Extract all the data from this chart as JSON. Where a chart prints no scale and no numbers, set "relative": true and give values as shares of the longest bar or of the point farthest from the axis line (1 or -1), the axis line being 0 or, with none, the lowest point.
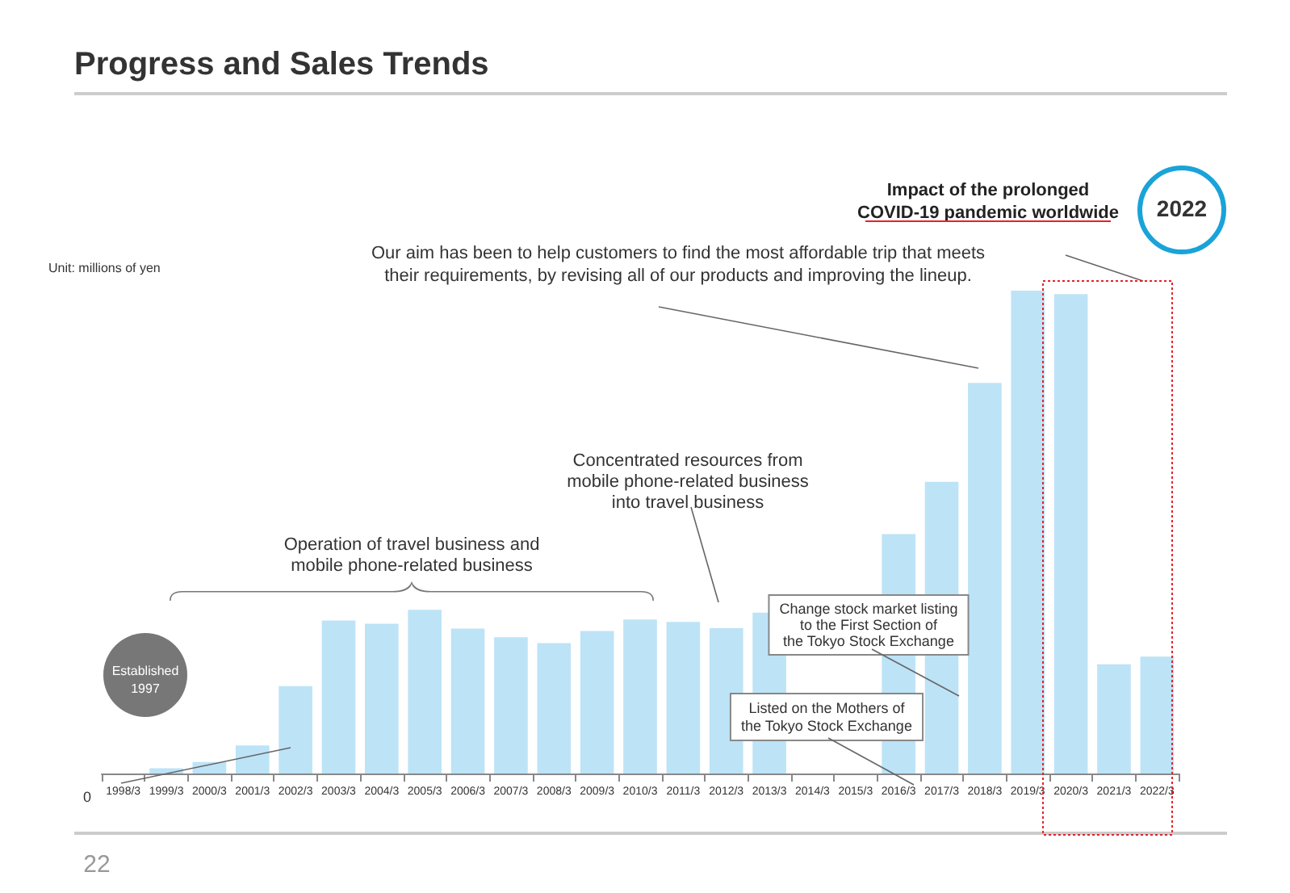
{
  "chart_data": {
    "type": "bar",
    "title": "Progress and Sales Trends",
    "ylabel": "Unit: millions of yen",
    "categories": [
      "1998/3",
      "1999/3",
      "2000/3",
      "2001/3",
      "2002/3",
      "2003/3",
      "2004/3",
      "2005/3",
      "2006/3",
      "2007/3",
      "2008/3",
      "2009/3",
      "2010/3",
      "2011/3",
      "2012/3",
      "2013/3",
      "2014/3",
      "2015/3",
      "2016/3",
      "2017/3",
      "2018/3",
      "2019/3",
      "2020/3",
      "2021/3",
      "2022/3"
    ],
    "values": [
      0,
      0.011,
      0.024,
      0.058,
      0.181,
      0.317,
      0.31,
      0.339,
      0.3,
      0.282,
      0.27,
      0.295,
      0.319,
      0.314,
      0.301,
      0.333,
      null,
      null,
      0.496,
      0.604,
      0.809,
      1,
      0.993,
      0.226,
      0.242
    ],
    "color": "#bde3f7",
    "relative": true,
    "grid": false,
    "annotations": [
      "Our aim has been to help customers to find the most affordable trip that meets\ntheir requirements, by revising all of our products and improving the lineup.",
      "Impact of the prolonged\nCOVID-19 pandemic worldwide",
      "2022",
      "Concentrated resources from\nmobile phone-related business\ninto travel business",
      "Operation of travel business and\nmobile phone-related business",
      "Change stock market listing\nto the First Section of\nthe Tokyo Stock Exchange",
      "Listed on the Mothers of\nthe Tokyo Stock Exchange",
      "Established\n1997",
      "0",
      "22"
    ]
  }
}
